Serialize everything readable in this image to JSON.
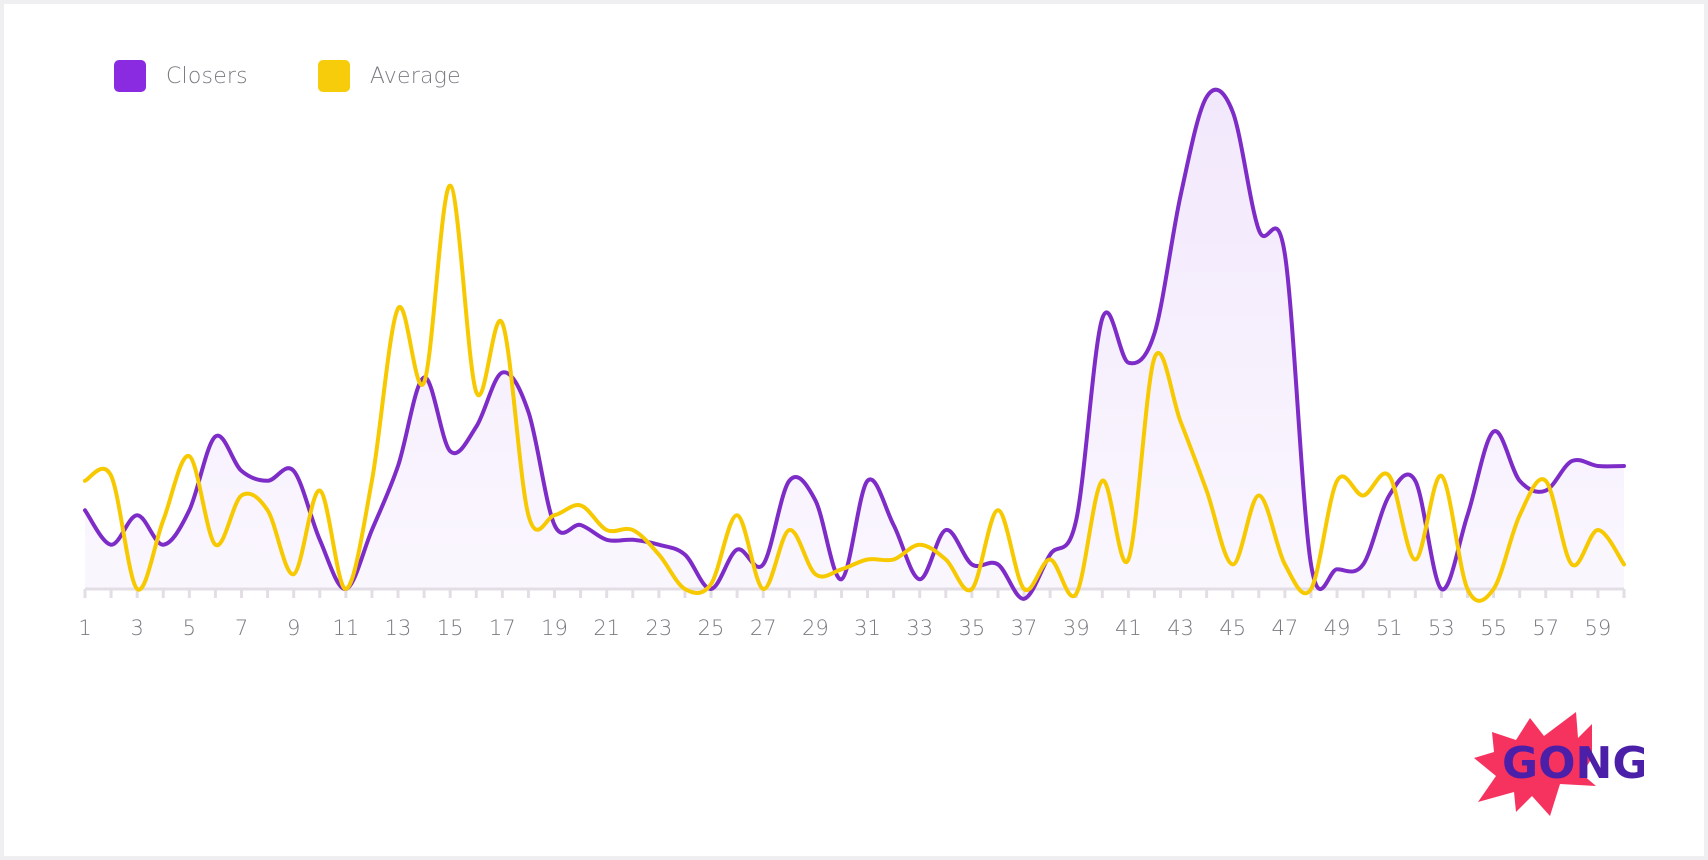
{
  "legend": {
    "items": [
      {
        "label": "Closers",
        "color": "#8a2be2"
      },
      {
        "label": "Average",
        "color": "#f7cc0a"
      }
    ]
  },
  "colors": {
    "closers_line": "#7e2cc8",
    "closers_fill": "#f2e8fc",
    "average_line": "#f7c900",
    "axis": "#e3dde6",
    "background": "#ffffff"
  },
  "logo": {
    "text": "GONG",
    "burst_color": "#f6335f",
    "text_color": "#4b1fa8"
  },
  "chart_data": {
    "type": "line",
    "x": [
      1,
      2,
      3,
      4,
      5,
      6,
      7,
      8,
      9,
      10,
      11,
      12,
      13,
      14,
      15,
      16,
      17,
      18,
      19,
      20,
      21,
      22,
      23,
      24,
      25,
      26,
      27,
      28,
      29,
      30,
      31,
      32,
      33,
      34,
      35,
      36,
      37,
      38,
      39,
      40,
      41,
      42,
      43,
      44,
      45,
      46,
      47,
      48,
      49,
      50,
      51,
      52,
      53,
      54,
      55,
      56,
      57,
      58,
      59,
      60
    ],
    "x_tick_labels": [
      "1",
      "3",
      "5",
      "7",
      "9",
      "11",
      "13",
      "15",
      "17",
      "19",
      "21",
      "23",
      "25",
      "27",
      "29",
      "31",
      "33",
      "35",
      "37",
      "39",
      "41",
      "43",
      "45",
      "47",
      "49",
      "51",
      "53",
      "55",
      "57",
      "59"
    ],
    "xlim": [
      1,
      60
    ],
    "ylim": [
      -2,
      100
    ],
    "grid": false,
    "legend_position": "top-left",
    "series": [
      {
        "name": "Closers",
        "filled": true,
        "values": [
          16,
          9,
          15,
          9,
          16,
          31,
          24,
          22,
          24,
          10,
          0,
          12,
          25,
          43,
          28,
          33,
          44,
          36,
          13,
          13,
          10,
          10,
          9,
          7,
          0,
          8,
          5,
          22,
          18,
          2,
          22,
          13,
          2,
          12,
          5,
          5,
          -2,
          7,
          14,
          55,
          46,
          52,
          80,
          100,
          97,
          73,
          68,
          5,
          4,
          5,
          19,
          22,
          0,
          15,
          32,
          22,
          20,
          26,
          25,
          25
        ]
      },
      {
        "name": "Average",
        "values": [
          22,
          23,
          0,
          14,
          27,
          9,
          19,
          16,
          3,
          20,
          0,
          22,
          57,
          42,
          82,
          40,
          54,
          15,
          15,
          17,
          12,
          12,
          7,
          0,
          1,
          15,
          0,
          12,
          3,
          4,
          6,
          6,
          9,
          6,
          0,
          16,
          0,
          6,
          -1,
          22,
          6,
          47,
          34,
          20,
          5,
          19,
          5,
          0,
          22,
          19,
          23,
          6,
          23,
          0,
          0,
          15,
          22,
          5,
          12,
          5
        ]
      }
    ]
  }
}
